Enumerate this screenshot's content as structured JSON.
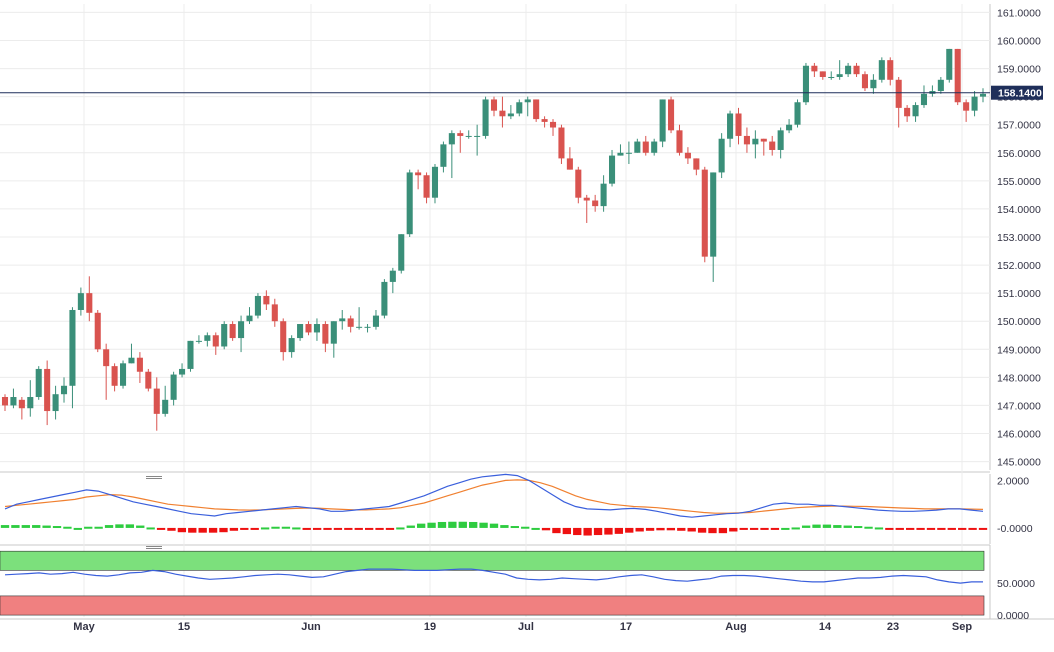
{
  "chart_data": [
    {
      "type": "candlestick",
      "panel": "price",
      "ylim": [
        144.7,
        161.3
      ],
      "y_ticks": [
        "161.0000",
        "160.0000",
        "159.0000",
        "158.0000",
        "157.0000",
        "156.0000",
        "155.0000",
        "154.0000",
        "153.0000",
        "152.0000",
        "151.0000",
        "150.0000",
        "149.0000",
        "148.0000",
        "147.0000",
        "146.0000",
        "145.0000"
      ],
      "last_price": 158.14,
      "last_price_label": "158.1400",
      "x_labels": [
        "May",
        "15",
        "Jun",
        "19",
        "Jul",
        "17",
        "Aug",
        "14",
        "23",
        "Sep"
      ],
      "grid": true,
      "colors": {
        "up": "#3a8f79",
        "down": "#d9534f",
        "last_line": "#1f2f5a",
        "label_bg": "#1f2f5a"
      },
      "candles": [
        [
          147.3,
          147.0,
          147.4,
          146.8
        ],
        [
          147.0,
          147.3,
          147.6,
          146.9
        ],
        [
          147.2,
          146.9,
          147.3,
          146.5
        ],
        [
          146.9,
          147.3,
          147.9,
          146.6
        ],
        [
          147.3,
          148.3,
          148.4,
          147.2
        ],
        [
          148.3,
          146.8,
          148.6,
          146.3
        ],
        [
          146.8,
          147.4,
          147.7,
          146.5
        ],
        [
          147.4,
          147.7,
          148.0,
          147.1
        ],
        [
          147.7,
          150.4,
          150.5,
          146.9
        ],
        [
          150.4,
          151.0,
          151.2,
          150.2
        ],
        [
          151.0,
          150.3,
          151.6,
          150.0
        ],
        [
          150.3,
          149.0,
          150.4,
          148.9
        ],
        [
          149.0,
          148.4,
          149.2,
          147.2
        ],
        [
          148.4,
          147.7,
          148.5,
          147.5
        ],
        [
          147.7,
          148.5,
          148.6,
          147.6
        ],
        [
          148.5,
          148.7,
          149.2,
          148.5
        ],
        [
          148.7,
          148.2,
          148.9,
          147.8
        ],
        [
          148.2,
          147.6,
          148.3,
          147.5
        ],
        [
          147.6,
          146.7,
          148.0,
          146.1
        ],
        [
          146.7,
          147.2,
          147.7,
          146.6
        ],
        [
          147.2,
          148.1,
          148.2,
          147.0
        ],
        [
          148.1,
          148.3,
          148.5,
          148.0
        ],
        [
          148.3,
          149.3,
          149.3,
          148.2
        ],
        [
          149.3,
          149.3,
          149.5,
          149.2
        ],
        [
          149.3,
          149.5,
          149.6,
          149.1
        ],
        [
          149.5,
          149.1,
          149.6,
          148.8
        ],
        [
          149.1,
          149.9,
          150.0,
          149.0
        ],
        [
          149.9,
          149.4,
          150.0,
          149.3
        ],
        [
          149.4,
          150.0,
          150.2,
          148.9
        ],
        [
          150.0,
          150.2,
          150.5,
          149.9
        ],
        [
          150.2,
          150.9,
          151.0,
          150.1
        ],
        [
          150.9,
          150.6,
          151.1,
          150.4
        ],
        [
          150.6,
          150.0,
          150.8,
          149.8
        ],
        [
          150.0,
          148.9,
          150.1,
          148.6
        ],
        [
          148.9,
          149.4,
          149.5,
          148.7
        ],
        [
          149.4,
          149.9,
          149.9,
          149.3
        ],
        [
          149.9,
          149.6,
          150.0,
          149.5
        ],
        [
          149.6,
          149.9,
          150.1,
          149.3
        ],
        [
          149.9,
          149.2,
          150.0,
          148.9
        ],
        [
          149.2,
          150.0,
          150.0,
          148.7
        ],
        [
          150.0,
          150.1,
          150.4,
          149.7
        ],
        [
          150.1,
          149.8,
          150.2,
          149.6
        ],
        [
          149.8,
          149.8,
          150.5,
          149.7
        ],
        [
          149.8,
          149.8,
          149.9,
          149.6
        ],
        [
          149.8,
          150.2,
          150.4,
          149.7
        ],
        [
          150.2,
          151.4,
          151.5,
          150.1
        ],
        [
          151.4,
          151.8,
          151.9,
          151.0
        ],
        [
          151.8,
          153.1,
          153.1,
          151.7
        ],
        [
          153.1,
          155.3,
          155.4,
          153.0
        ],
        [
          155.3,
          155.2,
          155.4,
          154.7
        ],
        [
          155.2,
          154.4,
          155.3,
          154.2
        ],
        [
          154.4,
          155.5,
          155.6,
          154.2
        ],
        [
          155.5,
          156.3,
          156.4,
          155.3
        ],
        [
          156.3,
          156.7,
          156.8,
          155.1
        ],
        [
          156.7,
          156.6,
          156.8,
          156.0
        ],
        [
          156.6,
          156.6,
          156.8,
          156.5
        ],
        [
          156.6,
          156.6,
          157.0,
          155.9
        ],
        [
          156.6,
          157.9,
          158.0,
          156.5
        ],
        [
          157.9,
          157.5,
          158.0,
          157.3
        ],
        [
          157.5,
          157.3,
          158.0,
          156.9
        ],
        [
          157.3,
          157.4,
          157.7,
          157.2
        ],
        [
          157.4,
          157.8,
          157.9,
          157.3
        ],
        [
          157.8,
          157.9,
          158.0,
          157.3
        ],
        [
          157.9,
          157.2,
          157.9,
          157.1
        ],
        [
          157.2,
          157.1,
          157.3,
          156.9
        ],
        [
          157.1,
          156.9,
          157.2,
          156.6
        ],
        [
          156.9,
          155.8,
          157.0,
          155.6
        ],
        [
          155.8,
          155.4,
          156.2,
          155.4
        ],
        [
          155.4,
          154.4,
          155.5,
          154.2
        ],
        [
          154.4,
          154.3,
          154.5,
          153.5
        ],
        [
          154.3,
          154.1,
          154.5,
          153.9
        ],
        [
          154.1,
          154.9,
          155.2,
          153.9
        ],
        [
          154.9,
          155.9,
          156.1,
          154.8
        ],
        [
          155.9,
          156.0,
          156.3,
          155.9
        ],
        [
          156.0,
          156.0,
          156.4,
          155.6
        ],
        [
          156.0,
          156.4,
          156.5,
          156.0
        ],
        [
          156.4,
          156.0,
          156.6,
          155.9
        ],
        [
          156.0,
          156.4,
          156.5,
          155.9
        ],
        [
          156.4,
          157.9,
          157.9,
          156.2
        ],
        [
          157.9,
          156.8,
          158.0,
          156.7
        ],
        [
          156.8,
          156.0,
          157.0,
          155.9
        ],
        [
          156.0,
          155.8,
          156.2,
          155.6
        ],
        [
          155.8,
          155.4,
          155.8,
          155.2
        ],
        [
          155.4,
          152.3,
          155.5,
          152.1
        ],
        [
          152.3,
          155.3,
          155.3,
          151.4
        ],
        [
          155.3,
          156.5,
          156.7,
          155.1
        ],
        [
          156.5,
          157.4,
          157.5,
          156.2
        ],
        [
          157.4,
          156.6,
          157.6,
          156.3
        ],
        [
          156.6,
          156.3,
          156.9,
          156.0
        ],
        [
          156.3,
          156.5,
          156.8,
          155.8
        ],
        [
          156.5,
          156.4,
          156.5,
          155.9
        ],
        [
          156.4,
          156.1,
          156.6,
          155.9
        ],
        [
          156.1,
          156.8,
          156.9,
          155.8
        ],
        [
          156.8,
          157.0,
          157.2,
          156.7
        ],
        [
          157.0,
          157.8,
          157.9,
          156.9
        ],
        [
          157.8,
          159.1,
          159.2,
          157.7
        ],
        [
          159.1,
          158.9,
          159.2,
          158.7
        ],
        [
          158.9,
          158.7,
          158.9,
          158.6
        ],
        [
          158.7,
          158.7,
          158.9,
          158.6
        ],
        [
          158.7,
          158.8,
          159.3,
          158.6
        ],
        [
          158.8,
          159.1,
          159.2,
          158.7
        ],
        [
          159.1,
          158.8,
          159.2,
          158.7
        ],
        [
          158.8,
          158.3,
          158.9,
          158.2
        ],
        [
          158.3,
          158.6,
          158.8,
          158.1
        ],
        [
          158.6,
          159.3,
          159.4,
          158.5
        ],
        [
          159.3,
          158.6,
          159.4,
          158.4
        ],
        [
          158.6,
          157.6,
          158.7,
          156.9
        ],
        [
          157.6,
          157.3,
          157.7,
          157.1
        ],
        [
          157.3,
          157.7,
          157.8,
          157.1
        ],
        [
          157.7,
          158.1,
          158.4,
          157.6
        ],
        [
          158.1,
          158.2,
          158.4,
          158.0
        ],
        [
          158.2,
          158.6,
          158.7,
          158.1
        ],
        [
          158.6,
          159.7,
          159.7,
          158.5
        ],
        [
          159.7,
          157.8,
          159.7,
          157.7
        ],
        [
          157.8,
          157.5,
          157.9,
          157.1
        ],
        [
          157.5,
          158.0,
          158.2,
          157.3
        ],
        [
          158.0,
          158.1,
          158.3,
          157.8
        ]
      ]
    },
    {
      "type": "line+histogram",
      "panel": "oscillator",
      "ylim": [
        -0.55,
        2.1
      ],
      "y_ticks": [
        "2.0000",
        "-0.0000"
      ],
      "colors": {
        "fast": "#3a5fdc",
        "slow": "#f08030",
        "hist_pos": "#2ecc40",
        "hist_neg": "#ee1111"
      },
      "fast": [
        0.8,
        1.0,
        1.1,
        1.2,
        1.3,
        1.4,
        1.5,
        1.6,
        1.55,
        1.4,
        1.25,
        1.1,
        1.0,
        0.9,
        0.8,
        0.7,
        0.6,
        0.55,
        0.5,
        0.6,
        0.65,
        0.7,
        0.75,
        0.8,
        0.85,
        0.9,
        0.85,
        0.8,
        0.7,
        0.7,
        0.75,
        0.8,
        0.85,
        0.9,
        1.05,
        1.2,
        1.35,
        1.55,
        1.75,
        1.9,
        2.05,
        2.15,
        2.2,
        2.25,
        2.2,
        2.0,
        1.7,
        1.4,
        1.1,
        0.9,
        0.8,
        0.78,
        0.76,
        0.8,
        0.82,
        0.78,
        0.7,
        0.6,
        0.5,
        0.45,
        0.5,
        0.55,
        0.6,
        0.62,
        0.7,
        0.85,
        1.0,
        1.05,
        1.0,
        1.0,
        0.95,
        0.95,
        0.9,
        0.85,
        0.8,
        0.75,
        0.72,
        0.7,
        0.7,
        0.72,
        0.75,
        0.8,
        0.8,
        0.75,
        0.7
      ],
      "slow": [
        0.9,
        0.95,
        1.0,
        1.05,
        1.1,
        1.15,
        1.2,
        1.3,
        1.35,
        1.4,
        1.38,
        1.3,
        1.2,
        1.1,
        1.0,
        0.95,
        0.9,
        0.85,
        0.8,
        0.78,
        0.76,
        0.75,
        0.76,
        0.78,
        0.8,
        0.82,
        0.84,
        0.83,
        0.8,
        0.78,
        0.76,
        0.76,
        0.78,
        0.8,
        0.85,
        0.95,
        1.05,
        1.2,
        1.35,
        1.5,
        1.65,
        1.8,
        1.9,
        2.0,
        2.02,
        2.0,
        1.9,
        1.75,
        1.55,
        1.35,
        1.2,
        1.1,
        1.0,
        0.95,
        0.9,
        0.88,
        0.85,
        0.8,
        0.75,
        0.7,
        0.65,
        0.62,
        0.62,
        0.63,
        0.65,
        0.7,
        0.75,
        0.8,
        0.85,
        0.88,
        0.9,
        0.92,
        0.92,
        0.91,
        0.9,
        0.88,
        0.86,
        0.84,
        0.82,
        0.8,
        0.8,
        0.8,
        0.8,
        0.79,
        0.78
      ],
      "hist": [
        0.12,
        0.12,
        0.12,
        0.12,
        0.1,
        0.08,
        0.05,
        0.0,
        0.05,
        0.05,
        0.12,
        0.15,
        0.15,
        0.1,
        0.02,
        -0.05,
        -0.12,
        -0.18,
        -0.2,
        -0.2,
        -0.2,
        -0.18,
        -0.12,
        -0.05,
        -0.03,
        0.02,
        0.05,
        0.05,
        0.02,
        -0.05,
        -0.08,
        -0.08,
        -0.06,
        -0.05,
        -0.06,
        -0.05,
        -0.04,
        -0.02,
        0.02,
        0.1,
        0.18,
        0.22,
        0.25,
        0.26,
        0.26,
        0.25,
        0.22,
        0.18,
        0.12,
        0.08,
        0.05,
        0.0,
        -0.1,
        -0.22,
        -0.26,
        -0.3,
        -0.32,
        -0.3,
        -0.28,
        -0.25,
        -0.2,
        -0.15,
        -0.12,
        -0.1,
        -0.1,
        -0.12,
        -0.15,
        -0.2,
        -0.22,
        -0.22,
        -0.15,
        -0.08,
        -0.05,
        -0.02,
        -0.02,
        0.0,
        0.02,
        0.1,
        0.14,
        0.14,
        0.12,
        0.1,
        0.08,
        0.05,
        0.02,
        -0.02,
        -0.04,
        -0.06,
        -0.06,
        -0.04,
        -0.03,
        -0.06,
        -0.08,
        -0.06,
        -0.05
      ]
    },
    {
      "type": "line",
      "panel": "rsi",
      "ylim": [
        -3,
        105
      ],
      "y_ticks": [
        "50.0000",
        "0.0000"
      ],
      "colors": {
        "line": "#3a5fdc",
        "upper_zone": "#7ce07c",
        "lower_zone": "#f08080"
      },
      "values": [
        63,
        64,
        65,
        66,
        64,
        65,
        67,
        64,
        62,
        61,
        63,
        66,
        67,
        70,
        68,
        64,
        61,
        58,
        56,
        57,
        58,
        60,
        62,
        63,
        64,
        63,
        61,
        59,
        60,
        64,
        68,
        70,
        72,
        72,
        72,
        71,
        70,
        70,
        70,
        71,
        72,
        72,
        70,
        67,
        64,
        58,
        56,
        55,
        56,
        58,
        57,
        56,
        55,
        57,
        60,
        62,
        63,
        60,
        56,
        54,
        53,
        55,
        57,
        61,
        62,
        62,
        61,
        59,
        57,
        55,
        53,
        52,
        52,
        54,
        56,
        58,
        58,
        59,
        61,
        62,
        61,
        60,
        55,
        52,
        50,
        52,
        52
      ]
    }
  ]
}
